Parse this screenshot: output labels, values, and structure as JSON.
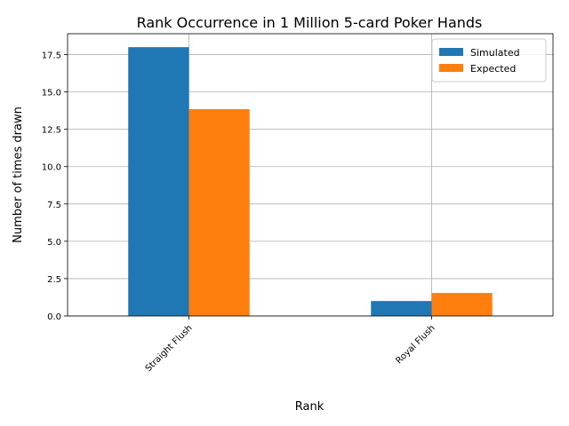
{
  "chart_data": {
    "type": "bar",
    "title": "Rank Occurrence in 1 Million 5-card Poker Hands",
    "xlabel": "Rank",
    "ylabel": "Number of times drawn",
    "categories": [
      "Straight Flush",
      "Royal Flush"
    ],
    "series": [
      {
        "name": "Simulated",
        "values": [
          18,
          1
        ],
        "color": "#1f77b4"
      },
      {
        "name": "Expected",
        "values": [
          13.85,
          1.54
        ],
        "color": "#ff7f0e"
      }
    ],
    "ylim": [
      0,
      18.9
    ],
    "yticks": [
      "0.0",
      "2.5",
      "5.0",
      "7.5",
      "10.0",
      "12.5",
      "15.0",
      "17.5"
    ],
    "grid": true,
    "legend_position": "top-right"
  }
}
